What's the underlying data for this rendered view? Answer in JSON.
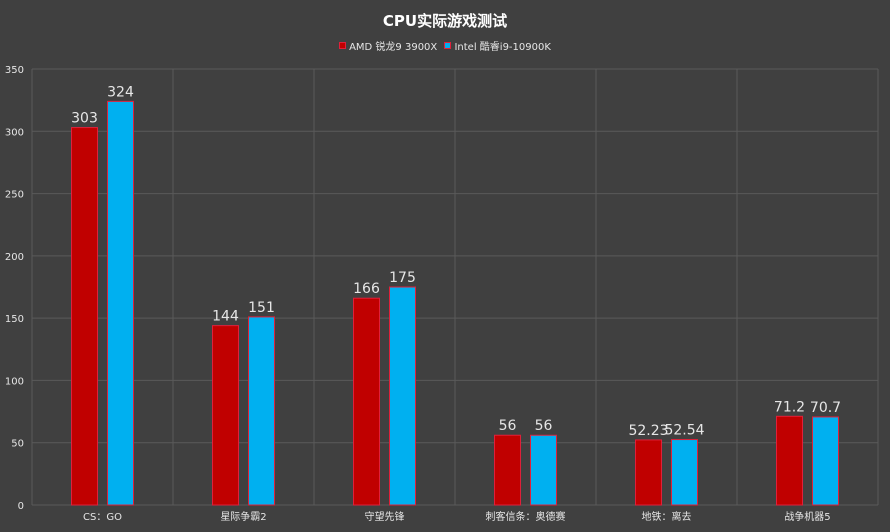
{
  "chart_data": {
    "type": "bar",
    "title": "CPU实际游戏测试",
    "categories": [
      "CS：GO",
      "星际争霸2",
      "守望先锋",
      "刺客信条：奥德赛",
      "地铁：离去",
      "战争机器5"
    ],
    "series": [
      {
        "name": "AMD 锐龙9 3900X",
        "values": [
          303,
          144,
          166,
          56,
          52.23,
          71.2
        ],
        "labels": [
          "303",
          "144",
          "166",
          "56",
          "52.23",
          "71.2"
        ],
        "color": "#c00000"
      },
      {
        "name": "Intel 酷睿i9-10900K",
        "values": [
          324,
          151,
          175,
          56,
          52.54,
          70.7
        ],
        "labels": [
          "324",
          "151",
          "175",
          "56",
          "52.54",
          "70.7"
        ],
        "color": "#00b0f0"
      }
    ],
    "ylim": [
      0,
      350
    ],
    "yticks": [
      0,
      50,
      100,
      150,
      200,
      250,
      300,
      350
    ],
    "grid": true,
    "legend_position": "top-center",
    "bar_border_color": "#e0203a",
    "background": "#404040"
  }
}
